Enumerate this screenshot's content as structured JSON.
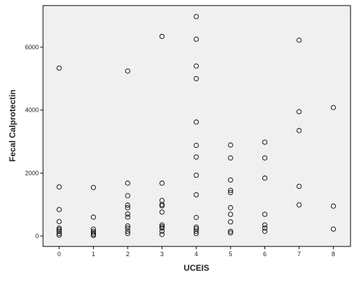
{
  "chart_data": {
    "type": "scatter",
    "x_label": "UCEIS",
    "y_label": "Fecal Calprotectin",
    "x": [
      0,
      0,
      0,
      0,
      0,
      0,
      0,
      0,
      0,
      1,
      1,
      1,
      1,
      1,
      1,
      1,
      2,
      2,
      2,
      2,
      2,
      2,
      2,
      2,
      2,
      2,
      2,
      3,
      3,
      3,
      3,
      3,
      3,
      3,
      3,
      3,
      3,
      3,
      4,
      4,
      4,
      4,
      4,
      4,
      4,
      4,
      4,
      4,
      4,
      4,
      4,
      4,
      5,
      5,
      5,
      5,
      5,
      5,
      5,
      5,
      5,
      5,
      6,
      6,
      6,
      6,
      6,
      6,
      6,
      7,
      7,
      7,
      7,
      7,
      8,
      8,
      8
    ],
    "values": [
      5332,
      1560,
      840,
      460,
      250,
      200,
      150,
      80,
      30,
      1540,
      600,
      220,
      150,
      100,
      50,
      20,
      5240,
      1680,
      1280,
      980,
      900,
      700,
      600,
      320,
      250,
      150,
      80,
      6340,
      1680,
      1130,
      1000,
      960,
      760,
      350,
      300,
      250,
      150,
      50,
      6970,
      6250,
      5400,
      5000,
      3620,
      2880,
      2510,
      1930,
      1310,
      590,
      280,
      230,
      150,
      80,
      2890,
      2480,
      1780,
      1450,
      1380,
      900,
      690,
      450,
      150,
      100,
      2980,
      2480,
      1840,
      690,
      350,
      250,
      150,
      6220,
      3950,
      3350,
      1580,
      990,
      4080,
      950,
      220
    ],
    "color": "#000000",
    "xlim": [
      -0.47,
      8.5
    ],
    "xticks": [
      0,
      1,
      2,
      3,
      4,
      5,
      6,
      7,
      8
    ],
    "ylim": [
      -330,
      7320
    ],
    "yticks": [
      0,
      2000,
      4000,
      6000
    ]
  }
}
